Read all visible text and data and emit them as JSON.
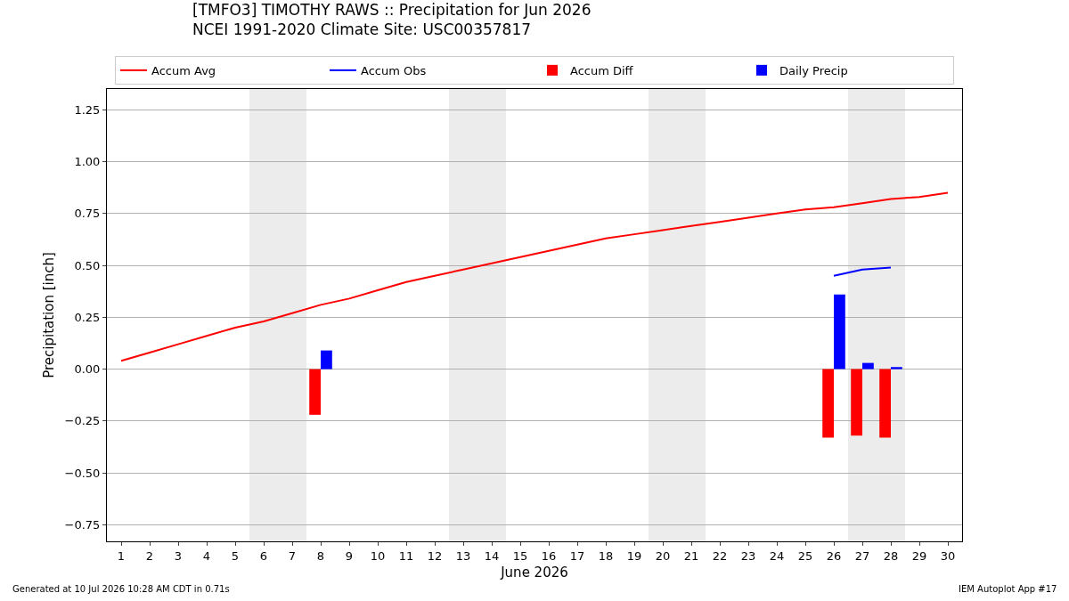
{
  "chart_data": {
    "type": "line",
    "title": "[TMFO3] TIMOTHY RAWS :: Precipitation for Jun 2026",
    "subtitle": "NCEI 1991-2020 Climate Site: USC00357817",
    "xlabel": "June 2026",
    "ylabel": "Precipitation [inch]",
    "series": [
      {
        "name": "Accum Avg",
        "color": "#ff0000",
        "x": [
          1,
          2,
          3,
          4,
          5,
          6,
          7,
          8,
          9,
          10,
          11,
          12,
          13,
          14,
          15,
          16,
          17,
          18,
          19,
          20,
          21,
          22,
          23,
          24,
          25,
          26,
          27,
          28,
          29,
          30
        ],
        "values": [
          0.04,
          0.08,
          0.12,
          0.16,
          0.2,
          0.23,
          0.27,
          0.31,
          0.34,
          0.38,
          0.42,
          0.45,
          0.48,
          0.51,
          0.54,
          0.57,
          0.6,
          0.63,
          0.65,
          0.67,
          0.69,
          0.71,
          0.73,
          0.75,
          0.77,
          0.78,
          0.8,
          0.82,
          0.83,
          0.85
        ]
      },
      {
        "name": "Accum Obs",
        "color": "#0000ff",
        "x": [
          26,
          27,
          28
        ],
        "values": [
          0.45,
          0.48,
          0.49
        ]
      },
      {
        "name": "Accum Diff",
        "type": "bar",
        "color": "#ff0000",
        "x": [
          8,
          26,
          27,
          28
        ],
        "values": [
          -0.22,
          -0.33,
          -0.32,
          -0.33
        ]
      },
      {
        "name": "Daily Precip",
        "type": "bar",
        "color": "#0000ff",
        "x": [
          8,
          26,
          27,
          28
        ],
        "values": [
          0.09,
          0.36,
          0.03,
          0.01
        ]
      }
    ],
    "xlim": [
      0.5,
      30.5
    ],
    "xticks": [
      1,
      2,
      3,
      4,
      5,
      6,
      7,
      8,
      9,
      10,
      11,
      12,
      13,
      14,
      15,
      16,
      17,
      18,
      19,
      20,
      21,
      22,
      23,
      24,
      25,
      26,
      27,
      28,
      29,
      30
    ],
    "ylim": [
      -0.83,
      1.35
    ],
    "yticks": [
      {
        "value": -0.75,
        "label": "−0.75"
      },
      {
        "value": -0.5,
        "label": "−0.50"
      },
      {
        "value": -0.25,
        "label": "−0.25"
      },
      {
        "value": 0,
        "label": "0.00"
      },
      {
        "value": 0.25,
        "label": "0.25"
      },
      {
        "value": 0.5,
        "label": "0.50"
      },
      {
        "value": 0.75,
        "label": "0.75"
      },
      {
        "value": 1,
        "label": "1.00"
      },
      {
        "value": 1.25,
        "label": "1.25"
      }
    ],
    "bands": [
      {
        "axis": "x",
        "from": 5.5,
        "to": 7.5,
        "color": "#ececec"
      },
      {
        "axis": "x",
        "from": 12.5,
        "to": 14.5,
        "color": "#ececec"
      },
      {
        "axis": "x",
        "from": 19.5,
        "to": 21.5,
        "color": "#ececec"
      },
      {
        "axis": "x",
        "from": 26.5,
        "to": 28.5,
        "color": "#ececec"
      }
    ],
    "grid": "y",
    "legend": "top",
    "marker": "none",
    "line_style": "solid",
    "annotations": [
      "Generated at 10 Jul 2026 10:28 AM CDT in 0.71s",
      "IEM Autoplot App #17"
    ]
  }
}
